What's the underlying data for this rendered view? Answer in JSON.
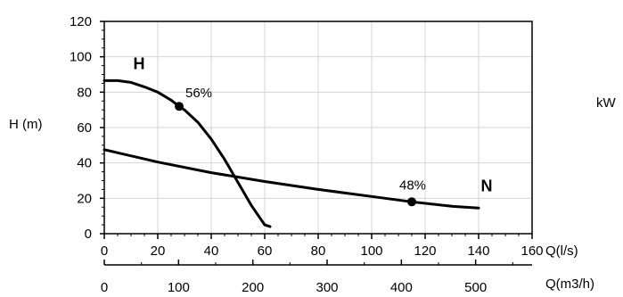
{
  "chart_data": {
    "type": "line",
    "grid": true,
    "x": {
      "label": "Q(l/s)",
      "range": [
        0,
        160
      ],
      "ticks": [
        0,
        20,
        40,
        60,
        80,
        100,
        120,
        140,
        160
      ],
      "tick_labels": [
        "0",
        "20",
        "40",
        "60",
        "80",
        "100",
        "120",
        "140",
        "160"
      ]
    },
    "x2": {
      "label": "Q(m3/h)",
      "ticks": [
        0,
        100,
        200,
        300,
        400,
        500
      ],
      "tick_labels": [
        "0",
        "100",
        "200",
        "300",
        "400",
        "500"
      ]
    },
    "y": {
      "label": "H (m)",
      "range": [
        0,
        120
      ],
      "ticks": [
        0,
        20,
        40,
        60,
        80,
        100,
        120
      ],
      "tick_labels": [
        "0",
        "20",
        "40",
        "60",
        "80",
        "100",
        "120"
      ]
    },
    "y2": {
      "label": "kW"
    },
    "series": [
      {
        "name": "H",
        "x": [
          0,
          5,
          10,
          15,
          20,
          25,
          28,
          30,
          35,
          40,
          45,
          50,
          55,
          60,
          62
        ],
        "y": [
          86.5,
          86.5,
          85.5,
          83,
          80,
          75.5,
          72,
          70,
          63,
          53.5,
          42,
          29,
          16,
          5,
          4
        ]
      },
      {
        "name": "N",
        "x": [
          0,
          20,
          40,
          60,
          80,
          100,
          115,
          130,
          140
        ],
        "y": [
          47.5,
          40.5,
          34.5,
          29.5,
          25,
          21,
          18,
          15.5,
          14.5
        ]
      }
    ],
    "annotations": [
      {
        "text": "56%",
        "x": 28,
        "y": 72,
        "series": "H"
      },
      {
        "text": "48%",
        "x": 115,
        "y": 18,
        "series": "N"
      }
    ]
  }
}
